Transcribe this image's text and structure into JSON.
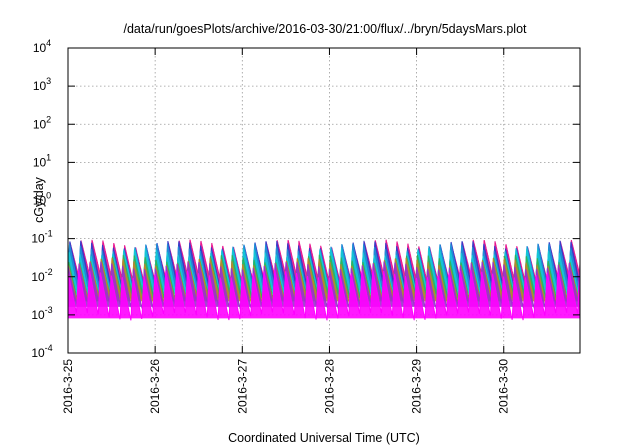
{
  "chart_data": {
    "type": "area",
    "title": "/data/run/goesPlots/archive/2016-03-30/21:00/flux/../bryn/5daysMars.plot",
    "xlabel": "Coordinated Universal Time (UTC)",
    "ylabel": "cGy/day",
    "y_scale": "log",
    "ylim": [
      0.0001,
      10000
    ],
    "xlim": [
      "2016-03-25",
      "2016-03-30 21:00"
    ],
    "grid": true,
    "y_ticks": [
      {
        "value": 0.0001,
        "base": "10",
        "exp": "-4"
      },
      {
        "value": 0.001,
        "base": "10",
        "exp": "-3"
      },
      {
        "value": 0.01,
        "base": "10",
        "exp": "-2"
      },
      {
        "value": 0.1,
        "base": "10",
        "exp": "-1"
      },
      {
        "value": 1,
        "base": "10",
        "exp": "0"
      },
      {
        "value": 10,
        "base": "10",
        "exp": "1"
      },
      {
        "value": 100,
        "base": "10",
        "exp": "2"
      },
      {
        "value": 1000,
        "base": "10",
        "exp": "3"
      },
      {
        "value": 10000,
        "base": "10",
        "exp": "4"
      }
    ],
    "x_ticks": [
      "2016-3-25",
      "2016-3-26",
      "2016-3-27",
      "2016-3-28",
      "2016-3-29",
      "2016-3-30"
    ],
    "x_tick_days": [
      0,
      1,
      2,
      3,
      4,
      5
    ],
    "x_max_day": 5.875,
    "cycle_days": 0.125,
    "series": [
      {
        "color": "#e8168f",
        "peak": 0.075,
        "trough": 0.0085,
        "phase": 0.0
      },
      {
        "color": "#3a3ac8",
        "peak": 0.07,
        "trough": 0.006,
        "phase": 0.004
      },
      {
        "color": "#1f8fd6",
        "peak": 0.06,
        "trough": 0.005,
        "phase": 0.008
      },
      {
        "color": "#15c6d6",
        "peak": 0.045,
        "trough": 0.004,
        "phase": 0.012
      },
      {
        "color": "#2db55d",
        "peak": 0.03,
        "trough": 0.003,
        "phase": 0.016
      },
      {
        "color": "#b8862e",
        "peak": 0.025,
        "trough": 0.0025,
        "phase": 0.02
      },
      {
        "color": "#9933cc",
        "peak": 0.02,
        "trough": 0.0018,
        "phase": 0.024
      },
      {
        "color": "#ff00ff",
        "peak": 0.012,
        "trough": 0.0009,
        "phase": 0.028
      }
    ]
  }
}
